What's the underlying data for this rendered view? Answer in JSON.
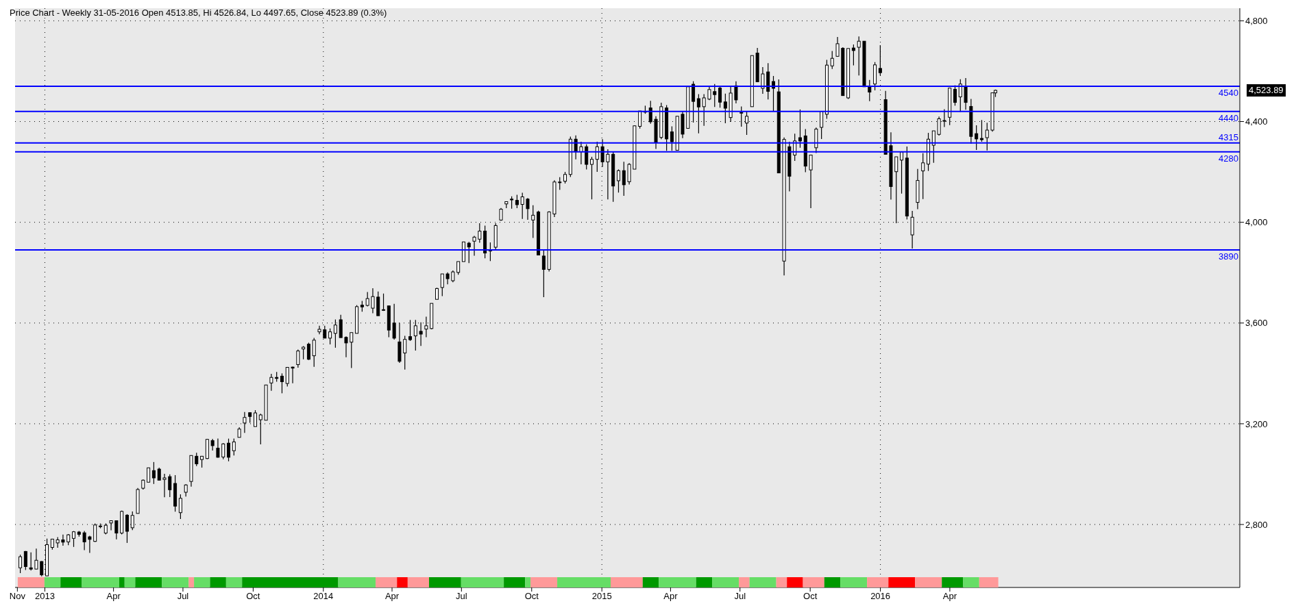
{
  "chart_data": {
    "type": "candlestick",
    "title": "Price Chart - Weekly 31-05-2016 Open 4513.85, Hi 4526.84, Lo 4497.65, Close 4523.89 (0.3%)",
    "color": "#000000",
    "x": [
      "2012-11-30",
      "2012-12-07",
      "2012-12-14",
      "2012-12-21",
      "2012-12-28",
      "2013-01-04",
      "2013-01-11",
      "2013-01-18",
      "2013-01-25",
      "2013-02-01",
      "2013-02-08",
      "2013-02-15",
      "2013-02-22",
      "2013-03-01",
      "2013-03-08",
      "2013-03-15",
      "2013-03-22",
      "2013-03-29",
      "2013-04-05",
      "2013-04-12",
      "2013-04-19",
      "2013-04-26",
      "2013-05-03",
      "2013-05-10",
      "2013-05-17",
      "2013-05-24",
      "2013-05-31",
      "2013-06-07",
      "2013-06-14",
      "2013-06-21",
      "2013-06-28",
      "2013-07-05",
      "2013-07-12",
      "2013-07-19",
      "2013-07-26",
      "2013-08-02",
      "2013-08-09",
      "2013-08-16",
      "2013-08-23",
      "2013-08-30",
      "2013-09-06",
      "2013-09-13",
      "2013-09-20",
      "2013-09-27",
      "2013-10-04",
      "2013-10-11",
      "2013-10-18",
      "2013-10-25",
      "2013-11-01",
      "2013-11-08",
      "2013-11-15",
      "2013-11-22",
      "2013-11-29",
      "2013-12-06",
      "2013-12-13",
      "2013-12-20",
      "2013-12-27",
      "2014-01-03",
      "2014-01-10",
      "2014-01-17",
      "2014-01-24",
      "2014-01-31",
      "2014-02-07",
      "2014-02-14",
      "2014-02-21",
      "2014-02-28",
      "2014-03-07",
      "2014-03-14",
      "2014-03-21",
      "2014-03-28",
      "2014-04-04",
      "2014-04-11",
      "2014-04-18",
      "2014-04-25",
      "2014-05-02",
      "2014-05-09",
      "2014-05-16",
      "2014-05-23",
      "2014-05-30",
      "2014-06-06",
      "2014-06-13",
      "2014-06-20",
      "2014-06-27",
      "2014-07-04",
      "2014-07-11",
      "2014-07-18",
      "2014-07-25",
      "2014-08-01",
      "2014-08-08",
      "2014-08-15",
      "2014-08-22",
      "2014-08-29",
      "2014-09-05",
      "2014-09-12",
      "2014-09-19",
      "2014-09-26",
      "2014-10-03",
      "2014-10-10",
      "2014-10-17",
      "2014-10-24",
      "2014-10-31",
      "2014-11-07",
      "2014-11-14",
      "2014-11-21",
      "2014-11-28",
      "2014-12-05",
      "2014-12-12",
      "2014-12-19",
      "2014-12-26",
      "2015-01-02",
      "2015-01-09",
      "2015-01-16",
      "2015-01-23",
      "2015-01-30",
      "2015-02-06",
      "2015-02-13",
      "2015-02-20",
      "2015-02-27",
      "2015-03-06",
      "2015-03-13",
      "2015-03-20",
      "2015-03-27",
      "2015-04-03",
      "2015-04-10",
      "2015-04-17",
      "2015-04-24",
      "2015-05-01",
      "2015-05-08",
      "2015-05-15",
      "2015-05-22",
      "2015-05-29",
      "2015-06-05",
      "2015-06-12",
      "2015-06-19",
      "2015-06-26",
      "2015-07-03",
      "2015-07-10",
      "2015-07-17",
      "2015-07-24",
      "2015-07-31",
      "2015-08-07",
      "2015-08-14",
      "2015-08-21",
      "2015-08-28",
      "2015-09-04",
      "2015-09-11",
      "2015-09-18",
      "2015-09-25",
      "2015-10-02",
      "2015-10-09",
      "2015-10-16",
      "2015-10-23",
      "2015-10-30",
      "2015-11-06",
      "2015-11-13",
      "2015-11-20",
      "2015-11-27",
      "2015-12-04",
      "2015-12-11",
      "2015-12-18",
      "2015-12-25",
      "2016-01-01",
      "2016-01-08",
      "2016-01-15",
      "2016-01-22",
      "2016-01-29",
      "2016-02-05",
      "2016-02-12",
      "2016-02-19",
      "2016-02-26",
      "2016-03-04",
      "2016-03-11",
      "2016-03-18",
      "2016-03-25",
      "2016-04-01",
      "2016-04-08",
      "2016-04-15",
      "2016-04-22",
      "2016-04-29",
      "2016-05-06",
      "2016-05-13",
      "2016-05-20",
      "2016-05-27",
      "2016-05-31"
    ],
    "ohlc": [
      [
        2628,
        2680,
        2607,
        2672
      ],
      [
        2693,
        2695,
        2619,
        2633
      ],
      [
        2628,
        2689,
        2617,
        2623
      ],
      [
        2623,
        2704,
        2623,
        2658
      ],
      [
        2653,
        2655,
        2594,
        2600
      ],
      [
        2596,
        2744,
        2596,
        2720
      ],
      [
        2709,
        2743,
        2700,
        2742
      ],
      [
        2727,
        2750,
        2708,
        2739
      ],
      [
        2739,
        2760,
        2716,
        2730
      ],
      [
        2731,
        2762,
        2718,
        2759
      ],
      [
        2745,
        2774,
        2711,
        2771
      ],
      [
        2770,
        2774,
        2752,
        2761
      ],
      [
        2767,
        2774,
        2698,
        2731
      ],
      [
        2751,
        2755,
        2687,
        2741
      ],
      [
        2733,
        2804,
        2731,
        2798
      ],
      [
        2794,
        2804,
        2785,
        2794
      ],
      [
        2766,
        2804,
        2761,
        2797
      ],
      [
        2806,
        2816,
        2777,
        2815
      ],
      [
        2815,
        2816,
        2741,
        2766
      ],
      [
        2766,
        2855,
        2761,
        2852
      ],
      [
        2837,
        2841,
        2727,
        2773
      ],
      [
        2787,
        2852,
        2778,
        2836
      ],
      [
        2844,
        2945,
        2844,
        2939
      ],
      [
        2944,
        2979,
        2939,
        2976
      ],
      [
        2968,
        3026,
        2968,
        3025
      ],
      [
        3014,
        3048,
        2961,
        2985
      ],
      [
        3020,
        3026,
        2976,
        2976
      ],
      [
        2979,
        3001,
        2908,
        2985
      ],
      [
        2990,
        2999,
        2909,
        2938
      ],
      [
        2963,
        2996,
        2851,
        2873
      ],
      [
        2847,
        2920,
        2822,
        2904
      ],
      [
        2928,
        2960,
        2911,
        2957
      ],
      [
        2971,
        3074,
        2950,
        3074
      ],
      [
        3071,
        3085,
        3032,
        3041
      ],
      [
        3058,
        3072,
        3026,
        3071
      ],
      [
        3062,
        3140,
        3060,
        3138
      ],
      [
        3133,
        3140,
        3094,
        3113
      ],
      [
        3103,
        3141,
        3065,
        3067
      ],
      [
        3068,
        3123,
        3059,
        3120
      ],
      [
        3123,
        3141,
        3051,
        3067
      ],
      [
        3093,
        3141,
        3074,
        3128
      ],
      [
        3146,
        3186,
        3146,
        3179
      ],
      [
        3203,
        3247,
        3164,
        3225
      ],
      [
        3244,
        3244,
        3204,
        3229
      ],
      [
        3189,
        3254,
        3189,
        3243
      ],
      [
        3216,
        3240,
        3118,
        3235
      ],
      [
        3214,
        3354,
        3214,
        3354
      ],
      [
        3362,
        3398,
        3331,
        3384
      ],
      [
        3384,
        3406,
        3367,
        3380
      ],
      [
        3389,
        3400,
        3321,
        3367
      ],
      [
        3360,
        3424,
        3348,
        3424
      ],
      [
        3425,
        3427,
        3361,
        3421
      ],
      [
        3435,
        3495,
        3423,
        3489
      ],
      [
        3497,
        3508,
        3456,
        3504
      ],
      [
        3516,
        3522,
        3453,
        3456
      ],
      [
        3470,
        3541,
        3426,
        3532
      ],
      [
        3565,
        3589,
        3555,
        3575
      ],
      [
        3573,
        3589,
        3540,
        3540
      ],
      [
        3540,
        3578,
        3515,
        3565
      ],
      [
        3559,
        3614,
        3502,
        3592
      ],
      [
        3613,
        3633,
        3542,
        3542
      ],
      [
        3543,
        3547,
        3464,
        3521
      ],
      [
        3524,
        3562,
        3421,
        3562
      ],
      [
        3559,
        3671,
        3559,
        3665
      ],
      [
        3671,
        3688,
        3645,
        3664
      ],
      [
        3670,
        3723,
        3666,
        3697
      ],
      [
        3659,
        3738,
        3639,
        3705
      ],
      [
        3703,
        3725,
        3629,
        3629
      ],
      [
        3653,
        3717,
        3648,
        3653
      ],
      [
        3668,
        3668,
        3544,
        3572
      ],
      [
        3600,
        3676,
        3534,
        3540
      ],
      [
        3525,
        3601,
        3442,
        3448
      ],
      [
        3481,
        3549,
        3415,
        3535
      ],
      [
        3546,
        3612,
        3529,
        3534
      ],
      [
        3549,
        3612,
        3491,
        3589
      ],
      [
        3567,
        3603,
        3509,
        3556
      ],
      [
        3576,
        3625,
        3544,
        3589
      ],
      [
        3578,
        3678,
        3575,
        3678
      ],
      [
        3694,
        3740,
        3694,
        3737
      ],
      [
        3741,
        3795,
        3707,
        3795
      ],
      [
        3795,
        3801,
        3754,
        3776
      ],
      [
        3768,
        3809,
        3762,
        3803
      ],
      [
        3801,
        3844,
        3792,
        3844
      ],
      [
        3844,
        3922,
        3844,
        3922
      ],
      [
        3917,
        3922,
        3838,
        3902
      ],
      [
        3925,
        3946,
        3867,
        3941
      ],
      [
        3933,
        3996,
        3919,
        3965
      ],
      [
        3965,
        3987,
        3857,
        3878
      ],
      [
        3890,
        3920,
        3846,
        3886
      ],
      [
        3901,
        3996,
        3892,
        3987
      ],
      [
        4009,
        4057,
        4006,
        4052
      ],
      [
        4073,
        4082,
        4056,
        4082
      ],
      [
        4092,
        4103,
        4054,
        4089
      ],
      [
        4087,
        4109,
        4056,
        4070
      ],
      [
        4071,
        4117,
        4013,
        4101
      ],
      [
        4092,
        4096,
        4010,
        4054
      ],
      [
        4009,
        4068,
        3938,
        4028
      ],
      [
        4041,
        4046,
        3870,
        3870
      ],
      [
        3866,
        3891,
        3703,
        3813
      ],
      [
        3813,
        4044,
        3805,
        4041
      ],
      [
        4033,
        4167,
        4021,
        4160
      ],
      [
        4160,
        4179,
        4129,
        4160
      ],
      [
        4163,
        4200,
        4154,
        4190
      ],
      [
        4190,
        4340,
        4180,
        4330
      ],
      [
        4330,
        4345,
        4250,
        4280
      ],
      [
        4280,
        4320,
        4230,
        4300
      ],
      [
        4300,
        4310,
        4210,
        4230
      ],
      [
        4230,
        4260,
        4091,
        4250
      ],
      [
        4250,
        4320,
        4200,
        4300
      ],
      [
        4300,
        4330,
        4220,
        4240
      ],
      [
        4240,
        4290,
        4091,
        4270
      ],
      [
        4270,
        4280,
        4081,
        4144
      ],
      [
        4165,
        4210,
        4118,
        4205
      ],
      [
        4205,
        4240,
        4105,
        4149
      ],
      [
        4161,
        4235,
        4150,
        4230
      ],
      [
        4211,
        4385,
        4211,
        4383
      ],
      [
        4381,
        4442,
        4372,
        4442
      ],
      [
        4440,
        4463,
        4431,
        4440
      ],
      [
        4454,
        4482,
        4391,
        4399
      ],
      [
        4409,
        4421,
        4291,
        4318
      ],
      [
        4337,
        4475,
        4330,
        4459
      ],
      [
        4454,
        4465,
        4284,
        4331
      ],
      [
        4359,
        4381,
        4284,
        4320
      ],
      [
        4286,
        4421,
        4286,
        4421
      ],
      [
        4429,
        4440,
        4334,
        4350
      ],
      [
        4373,
        4541,
        4373,
        4538
      ],
      [
        4548,
        4560,
        4396,
        4480
      ],
      [
        4491,
        4509,
        4353,
        4458
      ],
      [
        4459,
        4509,
        4383,
        4494
      ],
      [
        4489,
        4542,
        4485,
        4527
      ],
      [
        4519,
        4549,
        4458,
        4507
      ],
      [
        4533,
        4538,
        4455,
        4477
      ],
      [
        4478,
        4511,
        4393,
        4453
      ],
      [
        4416,
        4538,
        4399,
        4513
      ],
      [
        4542,
        4560,
        4472,
        4486
      ],
      [
        4436,
        4460,
        4380,
        4436
      ],
      [
        4394,
        4442,
        4347,
        4421
      ],
      [
        4459,
        4662,
        4459,
        4662
      ],
      [
        4672,
        4692,
        4558,
        4558
      ],
      [
        4532,
        4616,
        4510,
        4589
      ],
      [
        4597,
        4632,
        4488,
        4520
      ],
      [
        4559,
        4581,
        4440,
        4532
      ],
      [
        4518,
        4567,
        4196,
        4196
      ],
      [
        3846,
        4337,
        3789,
        4329
      ],
      [
        4300,
        4320,
        4123,
        4183
      ],
      [
        4267,
        4352,
        4244,
        4323
      ],
      [
        4336,
        4448,
        4296,
        4323
      ],
      [
        4343,
        4370,
        4199,
        4223
      ],
      [
        4208,
        4267,
        4056,
        4267
      ],
      [
        4296,
        4376,
        4275,
        4370
      ],
      [
        4377,
        4440,
        4331,
        4440
      ],
      [
        4429,
        4645,
        4411,
        4624
      ],
      [
        4621,
        4680,
        4609,
        4651
      ],
      [
        4659,
        4736,
        4657,
        4709
      ],
      [
        4691,
        4695,
        4503,
        4503
      ],
      [
        4494,
        4690,
        4490,
        4690
      ],
      [
        4692,
        4706,
        4623,
        4682
      ],
      [
        4695,
        4738,
        4583,
        4719
      ],
      [
        4719,
        4719,
        4538,
        4538
      ],
      [
        4538,
        4565,
        4481,
        4517
      ],
      [
        4549,
        4636,
        4524,
        4625
      ],
      [
        4611,
        4703,
        4583,
        4594
      ],
      [
        4487,
        4522,
        4270,
        4270
      ],
      [
        4304,
        4357,
        4090,
        4142
      ],
      [
        4201,
        4260,
        3996,
        4260
      ],
      [
        4247,
        4279,
        4114,
        4279
      ],
      [
        4255,
        4301,
        4011,
        4025
      ],
      [
        3950,
        4045,
        3896,
        4020
      ],
      [
        4079,
        4212,
        4052,
        4166
      ],
      [
        4204,
        4274,
        4092,
        4236
      ],
      [
        4231,
        4355,
        4204,
        4330
      ],
      [
        4306,
        4363,
        4236,
        4363
      ],
      [
        4349,
        4420,
        4344,
        4411
      ],
      [
        4404,
        4449,
        4378,
        4404
      ],
      [
        4417,
        4533,
        4386,
        4533
      ],
      [
        4528,
        4544,
        4463,
        4476
      ],
      [
        4498,
        4568,
        4438,
        4549
      ],
      [
        4536,
        4573,
        4447,
        4476
      ],
      [
        4460,
        4490,
        4312,
        4341
      ],
      [
        4352,
        4385,
        4287,
        4331
      ],
      [
        4333,
        4406,
        4320,
        4328
      ],
      [
        4336,
        4395,
        4285,
        4366
      ],
      [
        4366,
        4514,
        4360,
        4514
      ],
      [
        4513.85,
        4526.84,
        4497.65,
        4523.89
      ]
    ],
    "xlim": [
      "2012-11-23",
      "2017-04-16"
    ],
    "xticks": [
      {
        "value": "2012-11-26",
        "label": "Nov"
      },
      {
        "value": "2013-01-01",
        "label": "2013"
      },
      {
        "value": "2013-04-01",
        "label": "Apr"
      },
      {
        "value": "2013-07-01",
        "label": "Jul"
      },
      {
        "value": "2013-10-01",
        "label": "Oct"
      },
      {
        "value": "2014-01-01",
        "label": "2014"
      },
      {
        "value": "2014-04-01",
        "label": "Apr"
      },
      {
        "value": "2014-07-01",
        "label": "Jul"
      },
      {
        "value": "2014-10-01",
        "label": "Oct"
      },
      {
        "value": "2015-01-01",
        "label": "2015"
      },
      {
        "value": "2015-04-01",
        "label": "Apr"
      },
      {
        "value": "2015-07-01",
        "label": "Jul"
      },
      {
        "value": "2015-10-01",
        "label": "Oct"
      },
      {
        "value": "2016-01-01",
        "label": "2016"
      },
      {
        "value": "2016-04-01",
        "label": "Apr"
      }
    ],
    "ylim": [
      2550,
      4850
    ],
    "yticks": [
      {
        "value": 2800,
        "label": "2,800"
      },
      {
        "value": 3200,
        "label": "3,200"
      },
      {
        "value": 3600,
        "label": "3,600"
      },
      {
        "value": 4000,
        "label": "4,000"
      },
      {
        "value": 4400,
        "label": "4,400"
      },
      {
        "value": 4800,
        "label": "4,800"
      }
    ],
    "grid": true,
    "ref_lines": [
      {
        "axis": "y",
        "value": 4540,
        "label": "4540",
        "color": "#0000ff"
      },
      {
        "axis": "y",
        "value": 4440,
        "label": "4440",
        "color": "#0000ff"
      },
      {
        "axis": "y",
        "value": 4315,
        "label": "4315",
        "color": "#0000ff"
      },
      {
        "axis": "y",
        "value": 4280,
        "label": "4280",
        "color": "#0000ff"
      },
      {
        "axis": "y",
        "value": 3890,
        "label": "3890",
        "color": "#0000ff"
      }
    ],
    "annotations": [
      "4,523.89"
    ]
  }
}
